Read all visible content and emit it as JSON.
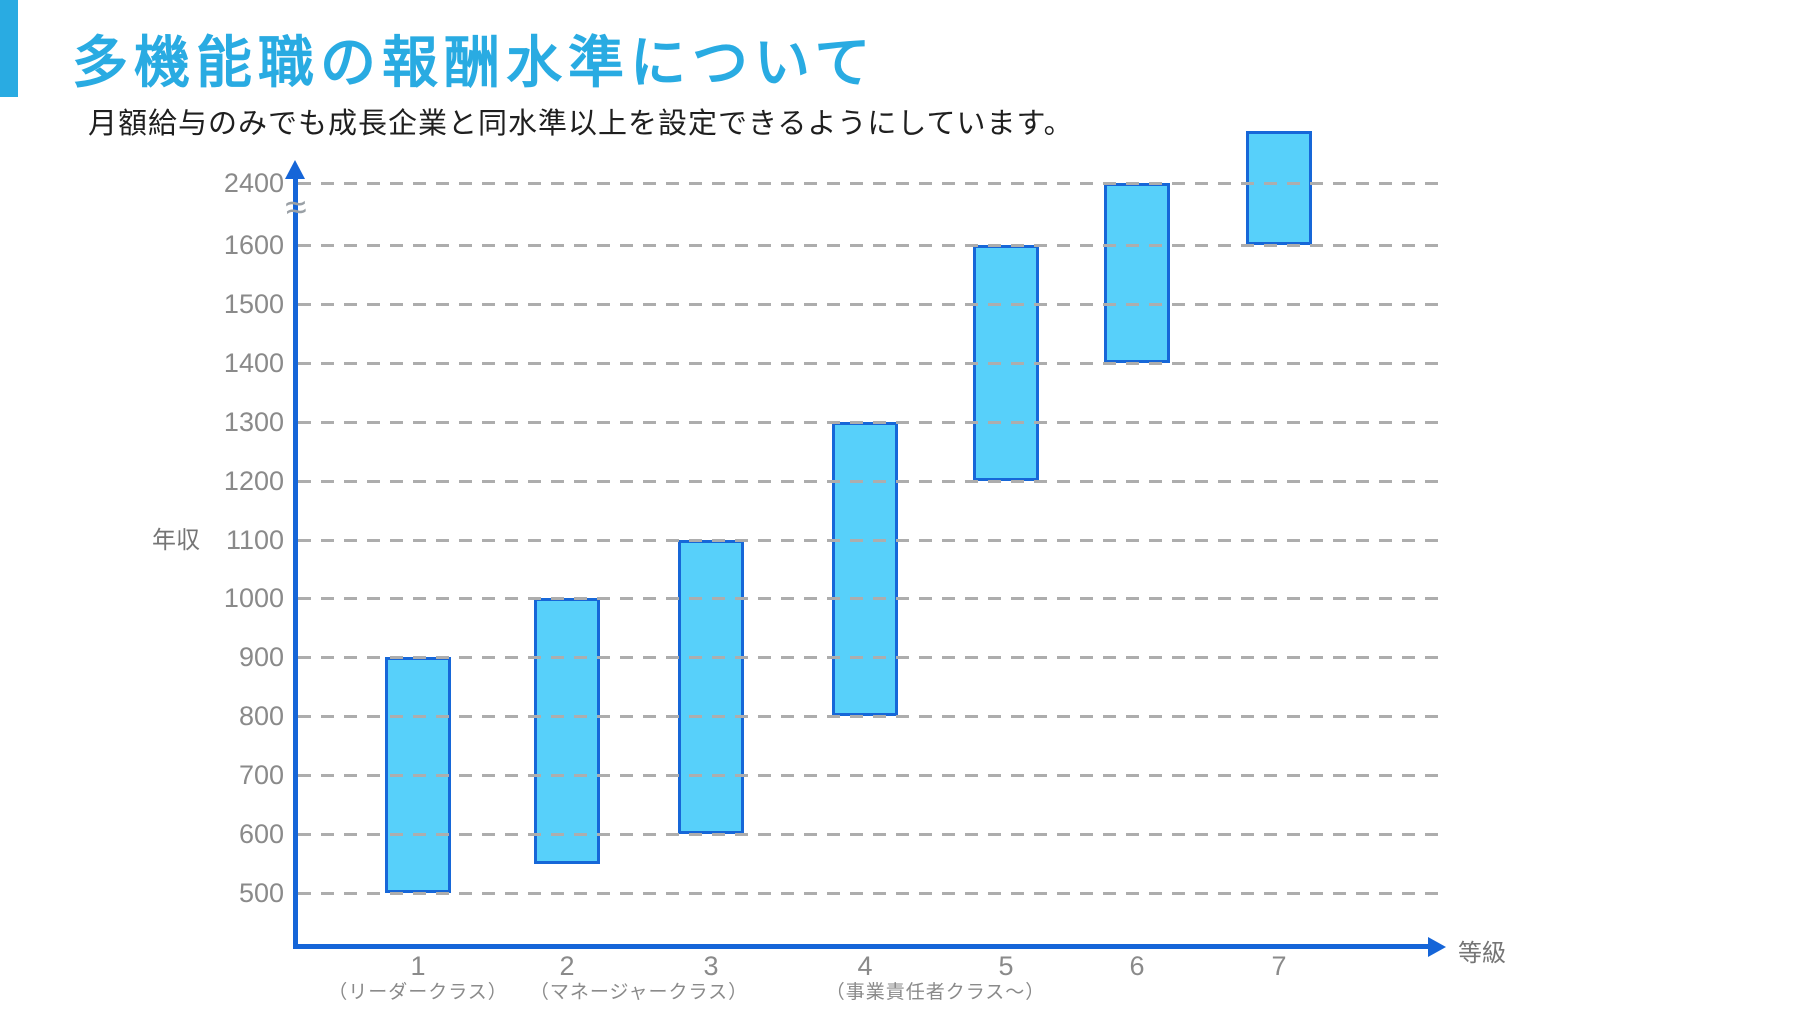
{
  "slide": {
    "title": "多機能職の報酬水準について",
    "subtitle": "月額給与のみでも成長企業と同水準以上を設定できるようにしています。"
  },
  "colors": {
    "accent": "#29abe2",
    "axis": "#1565d8",
    "bar_fill": "#57d0fa",
    "bar_border": "#1667d8",
    "gridline": "#adadad",
    "tick_text": "#8a8a8a",
    "axis_label_text": "#757575",
    "subtitle_text": "#1f1f1f",
    "break_symbol": "#9aa0a6"
  },
  "chart_data": {
    "type": "bar",
    "subtype": "floating_range_bars",
    "title": "",
    "xlabel": "等級",
    "ylabel": "年収",
    "categories": [
      "1",
      "2",
      "3",
      "4",
      "5",
      "6",
      "7"
    ],
    "bars": [
      {
        "grade": "1",
        "min": 500,
        "max": 900,
        "max_exceeds_axis": false
      },
      {
        "grade": "2",
        "min": 550,
        "max": 1000,
        "max_exceeds_axis": false
      },
      {
        "grade": "3",
        "min": 600,
        "max": 1100,
        "max_exceeds_axis": false
      },
      {
        "grade": "4",
        "min": 800,
        "max": 1300,
        "max_exceeds_axis": false
      },
      {
        "grade": "5",
        "min": 1200,
        "max": 1600,
        "max_exceeds_axis": false
      },
      {
        "grade": "6",
        "min": 1400,
        "max": 2400,
        "max_exceeds_axis": false
      },
      {
        "grade": "7",
        "min": 1600,
        "max": 2400,
        "max_exceeds_axis": true
      }
    ],
    "y_ticks": [
      500,
      600,
      700,
      800,
      900,
      1000,
      1100,
      1200,
      1300,
      1400,
      1500,
      1600,
      2400
    ],
    "ylim": [
      500,
      2400
    ],
    "y_axis_break": {
      "symbol": "≈",
      "between": [
        1600,
        2400
      ]
    },
    "grid": "horizontal-dashed",
    "legend": "none",
    "class_annotations": [
      {
        "label": "（リーダークラス）",
        "position_grades": [
          1
        ]
      },
      {
        "label": "（マネージャークラス）",
        "position_grades": [
          2,
          3
        ]
      },
      {
        "label": "（事業責任者クラス〜）",
        "position_grades": [
          4,
          5
        ]
      }
    ]
  }
}
